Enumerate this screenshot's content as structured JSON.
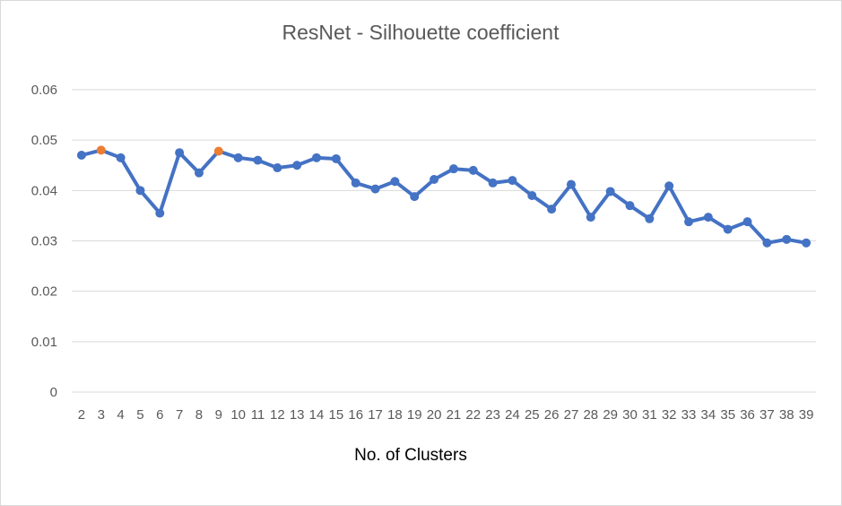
{
  "chart_data": {
    "type": "line",
    "title": "ResNet - Silhouette coefficient",
    "xlabel": "No. of Clusters",
    "ylabel": "",
    "ylim": [
      0,
      0.06
    ],
    "y_ticks": [
      "0",
      "0.01",
      "0.02",
      "0.03",
      "0.04",
      "0.05",
      "0.06"
    ],
    "grid": true,
    "legend": "none",
    "line_color": "#4472c4",
    "highlight_color": "#ed7d31",
    "categories": [
      "2",
      "3",
      "4",
      "5",
      "6",
      "7",
      "8",
      "9",
      "10",
      "11",
      "12",
      "13",
      "14",
      "15",
      "16",
      "17",
      "18",
      "19",
      "20",
      "21",
      "22",
      "23",
      "24",
      "25",
      "26",
      "27",
      "28",
      "29",
      "30",
      "31",
      "32",
      "33",
      "34",
      "35",
      "36",
      "37",
      "38",
      "39"
    ],
    "series": [
      {
        "values": [
          0.047,
          0.048,
          0.0465,
          0.04,
          0.0355,
          0.0475,
          0.0435,
          0.0478,
          0.0465,
          0.046,
          0.0445,
          0.045,
          0.0465,
          0.0463,
          0.0415,
          0.0403,
          0.0418,
          0.0388,
          0.0422,
          0.0443,
          0.044,
          0.0415,
          0.042,
          0.039,
          0.0363,
          0.0412,
          0.0347,
          0.0398,
          0.037,
          0.0344,
          0.0409,
          0.0338,
          0.0347,
          0.0323,
          0.0338,
          0.0296,
          0.0303,
          0.0296
        ]
      }
    ],
    "highlighted_points": [
      "3",
      "9"
    ]
  }
}
